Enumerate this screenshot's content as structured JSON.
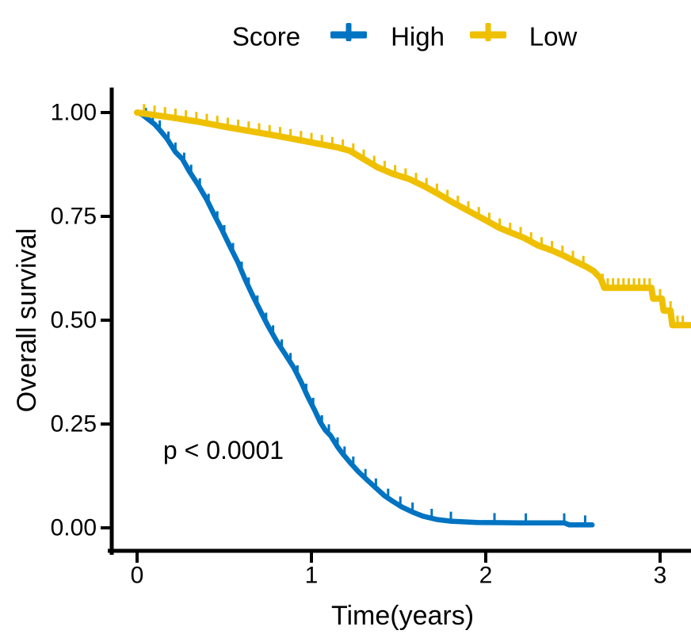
{
  "chart_data": {
    "type": "line",
    "subtype": "kaplan-meier-survival",
    "title": "",
    "xlabel": "Time(years)",
    "ylabel": "Overall survival",
    "xlim": [
      0,
      3.18
    ],
    "ylim": [
      0,
      1
    ],
    "grid": false,
    "background": "#ffffff",
    "axis_color": "#000000",
    "xtick_values": [
      0,
      1,
      2,
      3
    ],
    "xtick_labels": [
      "0",
      "1",
      "2",
      "3"
    ],
    "ytick_values": [
      1.0,
      0.75,
      0.5,
      0.25,
      0.0
    ],
    "ytick_labels": [
      "1.00",
      "0.75",
      "0.50",
      "0.25",
      "0.00"
    ],
    "annotation": {
      "text": "p < 0.0001",
      "x_years": 0.5,
      "y_survival": 0.19
    },
    "legend": {
      "position": "top",
      "title": "Score",
      "items": [
        {
          "label": "High",
          "color": "#0073C2"
        },
        {
          "label": "Low",
          "color": "#EFC000"
        }
      ]
    },
    "series": [
      {
        "name": "High",
        "color": "#0073C2",
        "points": [
          [
            0,
            1
          ],
          [
            0.03,
            0.995
          ],
          [
            0.06,
            0.985
          ],
          [
            0.1,
            0.972
          ],
          [
            0.13,
            0.958
          ],
          [
            0.17,
            0.938
          ],
          [
            0.22,
            0.905
          ],
          [
            0.26,
            0.888
          ],
          [
            0.3,
            0.858
          ],
          [
            0.35,
            0.826
          ],
          [
            0.4,
            0.79
          ],
          [
            0.44,
            0.756
          ],
          [
            0.49,
            0.715
          ],
          [
            0.53,
            0.68
          ],
          [
            0.58,
            0.638
          ],
          [
            0.62,
            0.598
          ],
          [
            0.66,
            0.562
          ],
          [
            0.71,
            0.52
          ],
          [
            0.75,
            0.487
          ],
          [
            0.8,
            0.45
          ],
          [
            0.85,
            0.418
          ],
          [
            0.9,
            0.385
          ],
          [
            0.94,
            0.352
          ],
          [
            0.98,
            0.315
          ],
          [
            1.02,
            0.282
          ],
          [
            1.05,
            0.255
          ],
          [
            1.08,
            0.235
          ],
          [
            1.11,
            0.222
          ],
          [
            1.15,
            0.195
          ],
          [
            1.18,
            0.178
          ],
          [
            1.22,
            0.158
          ],
          [
            1.27,
            0.135
          ],
          [
            1.32,
            0.115
          ],
          [
            1.37,
            0.096
          ],
          [
            1.42,
            0.077
          ],
          [
            1.47,
            0.063
          ],
          [
            1.52,
            0.05
          ],
          [
            1.58,
            0.038
          ],
          [
            1.64,
            0.028
          ],
          [
            1.72,
            0.02
          ],
          [
            1.8,
            0.016
          ],
          [
            1.95,
            0.013
          ],
          [
            2.2,
            0.012
          ],
          [
            2.45,
            0.012
          ],
          [
            2.48,
            0.007
          ],
          [
            2.61,
            0.007
          ]
        ],
        "censor_times": [
          0.05,
          0.09,
          0.13,
          0.18,
          0.22,
          0.27,
          0.31,
          0.36,
          0.41,
          0.46,
          0.5,
          0.55,
          0.6,
          0.64,
          0.69,
          0.74,
          0.78,
          0.83,
          0.88,
          0.92,
          0.97,
          1.01,
          1.06,
          1.1,
          1.15,
          1.19,
          1.24,
          1.31,
          1.37,
          1.44,
          1.51,
          1.58,
          1.69,
          1.8,
          2.05,
          2.23,
          2.45,
          2.57
        ]
      },
      {
        "name": "Low",
        "color": "#EFC000",
        "points": [
          [
            0,
            1
          ],
          [
            0.08,
            0.995
          ],
          [
            0.2,
            0.988
          ],
          [
            0.35,
            0.978
          ],
          [
            0.5,
            0.966
          ],
          [
            0.65,
            0.955
          ],
          [
            0.8,
            0.944
          ],
          [
            0.95,
            0.932
          ],
          [
            1.05,
            0.924
          ],
          [
            1.15,
            0.916
          ],
          [
            1.22,
            0.908
          ],
          [
            1.3,
            0.888
          ],
          [
            1.38,
            0.868
          ],
          [
            1.47,
            0.852
          ],
          [
            1.56,
            0.84
          ],
          [
            1.65,
            0.822
          ],
          [
            1.72,
            0.806
          ],
          [
            1.8,
            0.786
          ],
          [
            1.88,
            0.768
          ],
          [
            1.95,
            0.752
          ],
          [
            2.02,
            0.736
          ],
          [
            2.08,
            0.722
          ],
          [
            2.15,
            0.71
          ],
          [
            2.22,
            0.698
          ],
          [
            2.3,
            0.68
          ],
          [
            2.38,
            0.668
          ],
          [
            2.45,
            0.655
          ],
          [
            2.52,
            0.64
          ],
          [
            2.58,
            0.628
          ],
          [
            2.62,
            0.618
          ],
          [
            2.66,
            0.6
          ],
          [
            2.68,
            0.578
          ],
          [
            2.95,
            0.578
          ],
          [
            2.96,
            0.552
          ],
          [
            3.01,
            0.552
          ],
          [
            3.02,
            0.523
          ],
          [
            3.06,
            0.523
          ],
          [
            3.07,
            0.488
          ],
          [
            3.17,
            0.488
          ]
        ],
        "censor_times": [
          0.04,
          0.1,
          0.16,
          0.22,
          0.28,
          0.34,
          0.4,
          0.46,
          0.52,
          0.58,
          0.64,
          0.7,
          0.76,
          0.82,
          0.88,
          0.94,
          1.0,
          1.06,
          1.12,
          1.18,
          1.24,
          1.3,
          1.36,
          1.42,
          1.48,
          1.54,
          1.6,
          1.66,
          1.72,
          1.78,
          1.84,
          1.9,
          1.96,
          2.02,
          2.08,
          2.14,
          2.2,
          2.26,
          2.32,
          2.38,
          2.44,
          2.5,
          2.56,
          2.67,
          2.7,
          2.73,
          2.76,
          2.79,
          2.82,
          2.85,
          2.88,
          2.91,
          2.94,
          3.0,
          3.02,
          3.06,
          3.1,
          3.13
        ]
      }
    ]
  }
}
